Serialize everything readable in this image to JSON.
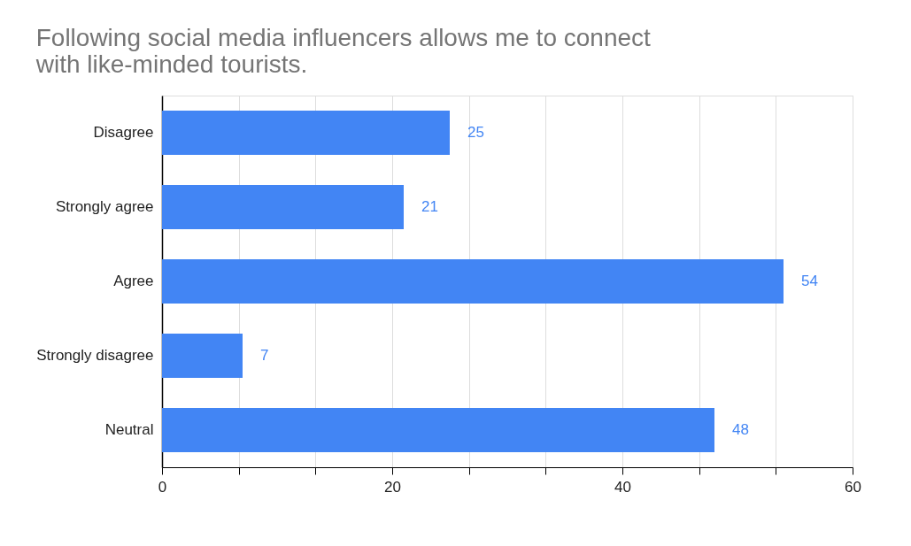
{
  "chart_data": {
    "type": "bar",
    "orientation": "horizontal",
    "title": "Following social media influencers allows me to connect with like-minded tourists.",
    "categories": [
      "Disagree",
      "Strongly agree",
      "Agree",
      "Strongly disagree",
      "Neutral"
    ],
    "values": [
      25,
      21,
      54,
      7,
      48
    ],
    "color": "#4285f4",
    "data_labels": true,
    "xlim": [
      0,
      60
    ],
    "xticks": [
      0,
      {
        "value": 6.6667,
        "label": null
      },
      {
        "value": 13.3333,
        "label": null
      },
      20,
      {
        "value": 26.6667,
        "label": null
      },
      {
        "value": 33.3333,
        "label": null
      },
      40,
      {
        "value": 46.6667,
        "label": null
      },
      {
        "value": 53.3333,
        "label": null
      },
      60
    ],
    "grid": "x"
  }
}
